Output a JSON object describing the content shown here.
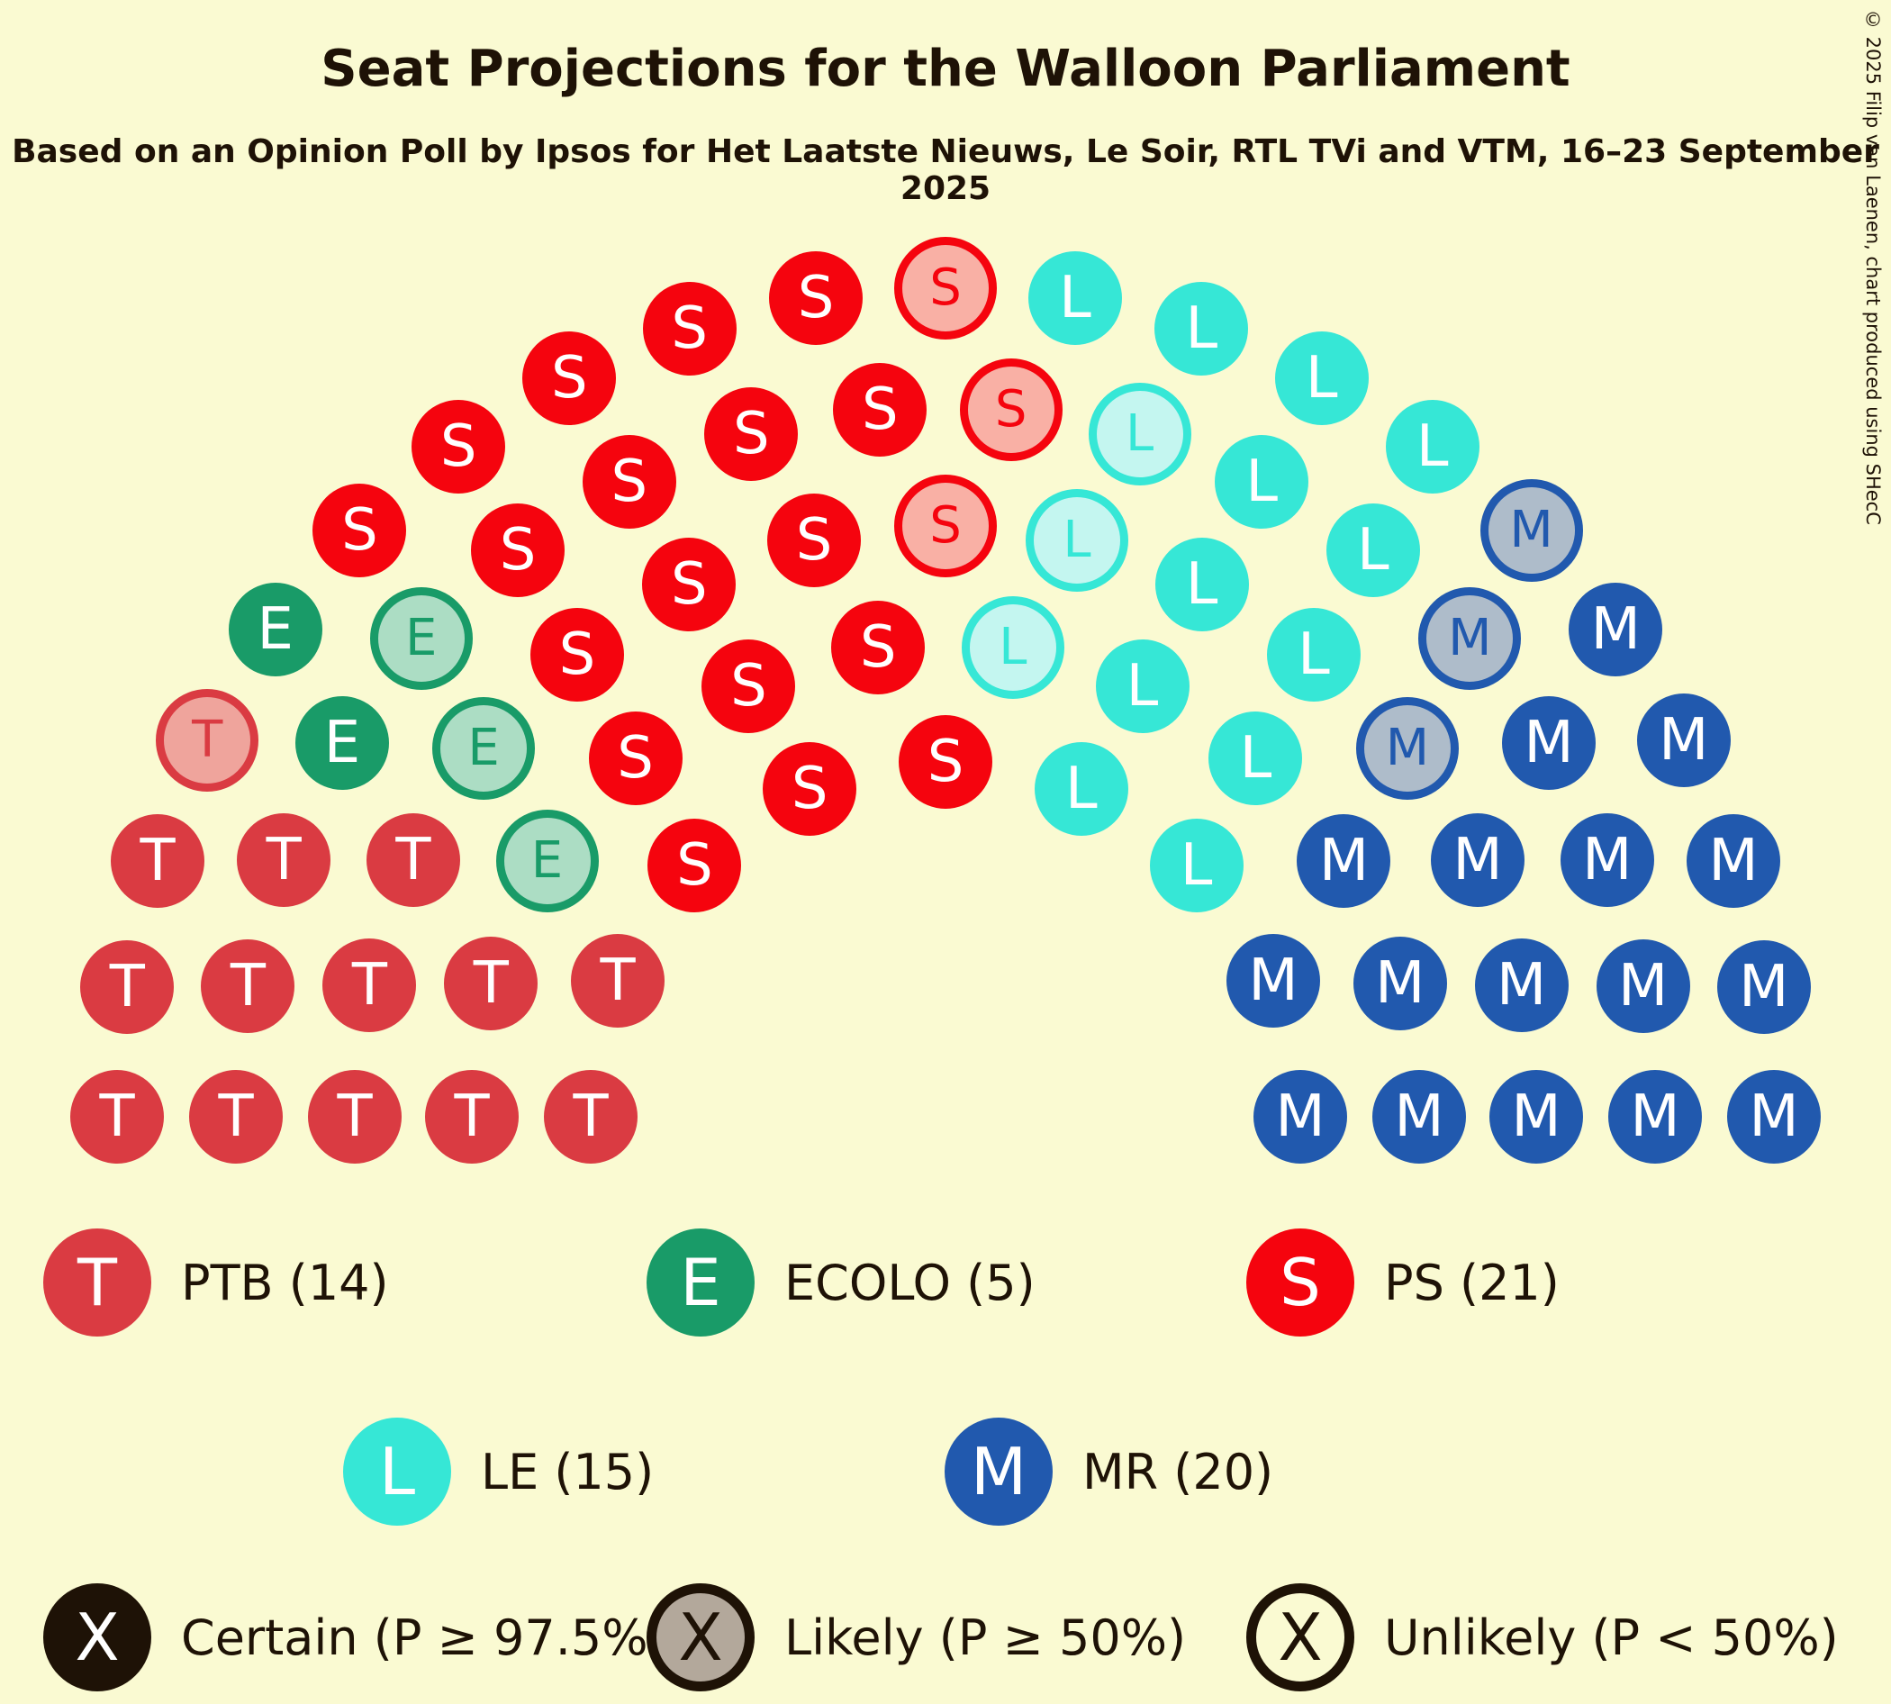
{
  "title": "Seat Projections for the Walloon Parliament",
  "subtitle": "Based on an Opinion Poll by Ipsos for Het Laatste Nieuws, Le Soir, RTL TVi and VTM, 16–23 September 2025",
  "copyright": "© 2025 Filip van Laenen, chart produced using SHecC",
  "colors": {
    "background": "#FAFAD2",
    "text": "#1E1206"
  },
  "chart_data": {
    "type": "parliament",
    "title": "Seat Projections for the Walloon Parliament",
    "total_seats": 75,
    "parties": [
      {
        "key": "ptb",
        "letter": "T",
        "name": "PTB",
        "seats": 14,
        "label": "PTB (14)",
        "color": "#DA3B42",
        "tint": "#EFA49C"
      },
      {
        "key": "ecolo",
        "letter": "E",
        "name": "ECOLO",
        "seats": 5,
        "label": "ECOLO (5)",
        "color": "#199B68",
        "tint": "#ACDDC4"
      },
      {
        "key": "ps",
        "letter": "S",
        "name": "PS",
        "seats": 21,
        "label": "PS (21)",
        "color": "#F5040E",
        "tint": "#F9B0A5"
      },
      {
        "key": "le",
        "letter": "L",
        "name": "LE",
        "seats": 15,
        "label": "LE (15)",
        "color": "#36E7D6",
        "tint": "#C4F6F0"
      },
      {
        "key": "mr",
        "letter": "M",
        "name": "MR",
        "seats": 20,
        "label": "MR (20)",
        "color": "#2159AE",
        "tint": "#AEBCCA"
      }
    ],
    "seat_rows": [
      "T T S S S L L M M",
      "T T E* S S S L* L L M M M",
      "T T T E* S S S S* L* L L M* M M M",
      "T T T E E* S S S S S* L* L L M* M M M M",
      "T T T T* E S S S S S S* L L L L M* M M M M M"
    ],
    "statuses": [
      {
        "key": "certain",
        "letter": "X",
        "label": "Certain (P ≥ 97.5%)"
      },
      {
        "key": "likely",
        "letter": "X",
        "label": "Likely (P ≥ 50%)"
      },
      {
        "key": "unlikely",
        "letter": "X",
        "label": "Unlikely (P < 50%)"
      }
    ]
  }
}
